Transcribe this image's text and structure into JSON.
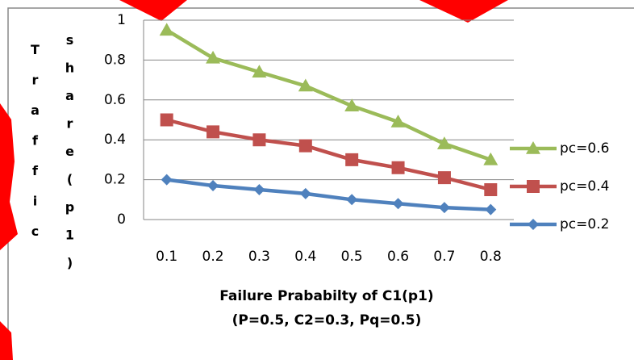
{
  "chart_data": {
    "type": "line",
    "y_label": [
      "Traffic",
      "share(p1)"
    ],
    "x_label": [
      "Failure Prababilty of C1(p1)",
      "(P=0.5, C2=0.3, Pq=0.5)"
    ],
    "categories": [
      "0.1",
      "0.2",
      "0.3",
      "0.4",
      "0.5",
      "0.6",
      "0.7",
      "0.8"
    ],
    "ylim": [
      0,
      1
    ],
    "yticks": [
      0,
      0.2,
      0.4,
      0.6,
      0.8,
      1
    ],
    "grid": true,
    "legend": "right",
    "series": [
      {
        "name": "pc=0.6",
        "color": "#9bbb59",
        "marker": "triangle",
        "values": [
          0.95,
          0.81,
          0.74,
          0.67,
          0.57,
          0.49,
          0.38,
          0.3
        ]
      },
      {
        "name": "pc=0.4",
        "color": "#c0504d",
        "marker": "square",
        "values": [
          0.5,
          0.44,
          0.4,
          0.37,
          0.3,
          0.26,
          0.21,
          0.15
        ]
      },
      {
        "name": "pc=0.2",
        "color": "#4f81bd",
        "marker": "diamond",
        "values": [
          0.2,
          0.17,
          0.15,
          0.13,
          0.1,
          0.08,
          0.06,
          0.05
        ]
      }
    ]
  }
}
